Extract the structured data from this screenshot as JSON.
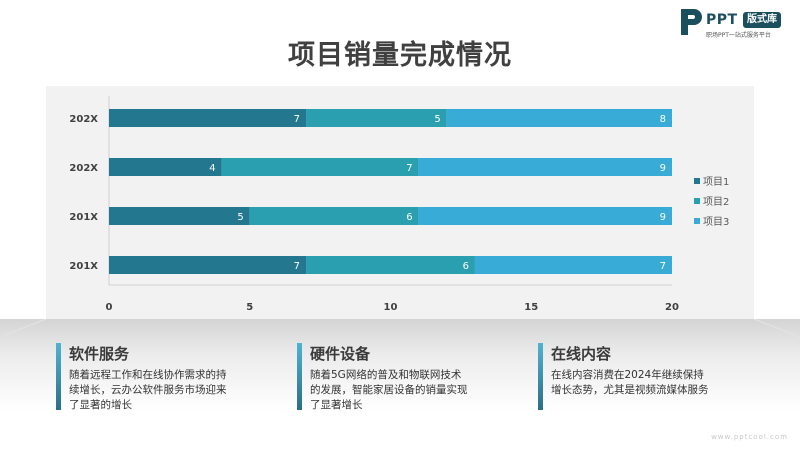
{
  "logo": {
    "brand": "PPT",
    "badge": "版式库",
    "tagline": "职场PPT一站式服务平台"
  },
  "title": "项目销量完成情况",
  "chart_data": {
    "type": "bar",
    "orientation": "horizontal",
    "stacked": true,
    "categories": [
      "202X",
      "202X",
      "201X",
      "201X"
    ],
    "series": [
      {
        "name": "项目1",
        "values": [
          7,
          4,
          5,
          7
        ],
        "color": "#23788f"
      },
      {
        "name": "项目2",
        "values": [
          5,
          7,
          6,
          6
        ],
        "color": "#2a9fb0"
      },
      {
        "name": "项目3",
        "values": [
          8,
          9,
          9,
          7
        ],
        "color": "#38acd6"
      }
    ],
    "xlim": [
      0,
      20
    ],
    "xticks": [
      0,
      5,
      10,
      15,
      20
    ],
    "data_labels": true,
    "grid": false,
    "legend_position": "right",
    "title": "",
    "xlabel": "",
    "ylabel": ""
  },
  "cards": [
    {
      "title": "软件服务",
      "lines": [
        "随着远程工作和在线协作需求的持",
        "续增长，云办公软件服务市场迎来",
        "了显著的增长"
      ]
    },
    {
      "title": "硬件设备",
      "lines": [
        "随着5G网络的普及和物联网技术",
        "的发展，智能家居设备的销量实现",
        "了显著增长"
      ]
    },
    {
      "title": "在线内容",
      "lines": [
        "在线内容消费在2024年继续保持",
        "增长态势，尤其是视频流媒体服务"
      ]
    }
  ],
  "watermark": "www.pptcool.com",
  "colors": {
    "title": "#404040",
    "brand": "#1c4f5e",
    "panel": "#f2f2f2"
  }
}
